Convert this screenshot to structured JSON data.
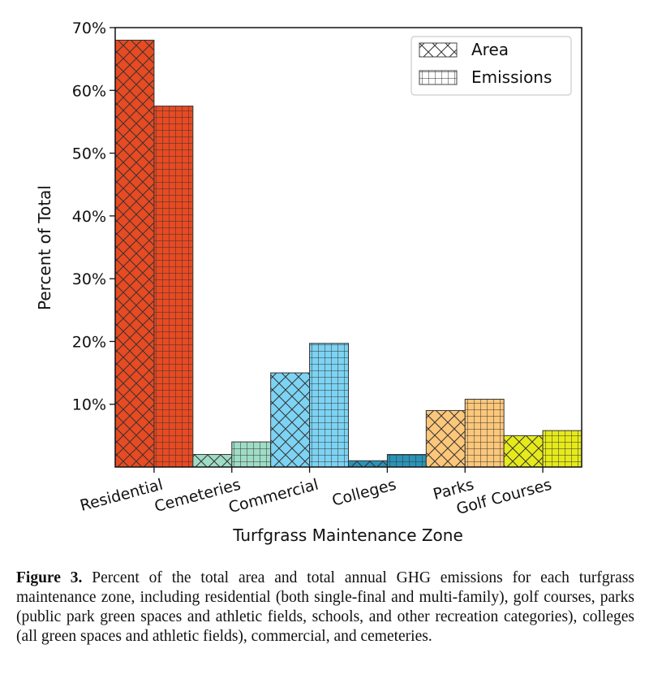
{
  "chart_data": {
    "type": "bar",
    "categories": [
      "Residential",
      "Cemeteries",
      "Commercial",
      "Colleges",
      "Parks",
      "Golf Courses"
    ],
    "series": [
      {
        "name": "Area",
        "hatch": "crosshatch-diagonal",
        "values": [
          68,
          2,
          15,
          1,
          9,
          5
        ]
      },
      {
        "name": "Emissions",
        "hatch": "grid",
        "values": [
          57.5,
          4,
          19.7,
          2,
          10.8,
          5.8
        ]
      }
    ],
    "category_colors": [
      "#e84a22",
      "#9fdcc6",
      "#7dd3f3",
      "#2a93b8",
      "#fcc77a",
      "#e6ea1a"
    ],
    "ylim": [
      0,
      70
    ],
    "yticks": [
      10,
      20,
      30,
      40,
      50,
      60,
      70
    ],
    "ytick_labels": [
      "10%",
      "20%",
      "30%",
      "40%",
      "50%",
      "60%",
      "70%"
    ],
    "xlabel": "Turfgrass Maintenance Zone",
    "ylabel": "Percent of Total",
    "legend_position": "top-right"
  },
  "caption": {
    "label": "Figure 3.",
    "text": "Percent of the total area and total annual GHG emissions for each turfgrass maintenance zone, including residential (both single-final and multi-family), golf courses, parks (public park green spaces and athletic fields, schools, and other recreation categories), colleges (all green spaces and athletic fields), commercial, and cemeteries."
  }
}
